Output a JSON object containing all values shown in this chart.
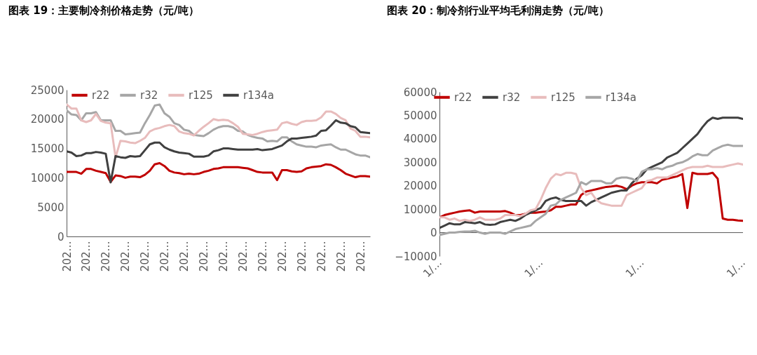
{
  "chart_data": [
    {
      "type": "line",
      "title": "图表 19：主要制冷剂价格走势（元/吨）",
      "categories": [
        "202…",
        null,
        null,
        null,
        "202…",
        null,
        null,
        null,
        "202…",
        null,
        null,
        null,
        "202…",
        null,
        null,
        null,
        "202…",
        null,
        null,
        null,
        "202…",
        null,
        null,
        null,
        "202…",
        null,
        null,
        null,
        "202…",
        null,
        null,
        null,
        "202…",
        null,
        null,
        null,
        "202…",
        null,
        null,
        null,
        "202…",
        null,
        null,
        null,
        "202…",
        null,
        null,
        null,
        "202…",
        null,
        null,
        null,
        "202…",
        null,
        null,
        null,
        "202…",
        null,
        null,
        null,
        "202…",
        null,
        null
      ],
      "series": [
        {
          "name": "r22",
          "color": "#c00000",
          "values": [
            11000,
            11000,
            11000,
            10700,
            11500,
            11500,
            11200,
            11000,
            10800,
            9300,
            10400,
            10300,
            10000,
            10200,
            10200,
            10100,
            10500,
            11200,
            12300,
            12500,
            12000,
            11200,
            10900,
            10800,
            10600,
            10700,
            10600,
            10700,
            11000,
            11200,
            11500,
            11600,
            11800,
            11800,
            11800,
            11800,
            11700,
            11600,
            11300,
            11000,
            10900,
            10900,
            10900,
            9600,
            11300,
            11300,
            11100,
            11000,
            11100,
            11600,
            11800,
            11900,
            12000,
            12300,
            12200,
            11800,
            11300,
            10700,
            10400,
            10100,
            10300,
            10300,
            10200
          ]
        },
        {
          "name": "r32",
          "color": "#a6a6a6",
          "values": [
            21500,
            20800,
            20700,
            19800,
            21000,
            21000,
            21200,
            19800,
            19800,
            19800,
            18000,
            18000,
            17400,
            17500,
            17600,
            17700,
            19300,
            20700,
            22300,
            22500,
            21000,
            20400,
            19300,
            19000,
            18200,
            18000,
            17300,
            17200,
            17100,
            17600,
            18200,
            18600,
            18800,
            18800,
            18600,
            18000,
            17900,
            17300,
            17000,
            16800,
            16700,
            16200,
            16300,
            16200,
            16900,
            16900,
            16200,
            15700,
            15500,
            15300,
            15300,
            15200,
            15500,
            15600,
            15700,
            15200,
            14800,
            14800,
            14400,
            14000,
            13800,
            13800,
            13500
          ]
        },
        {
          "name": "r125",
          "color": "#e8bcbc",
          "values": [
            22500,
            21800,
            21800,
            19800,
            19500,
            19800,
            20900,
            19700,
            19400,
            19300,
            13500,
            16300,
            16200,
            16000,
            15900,
            16300,
            16800,
            17900,
            18300,
            18500,
            18800,
            19000,
            18800,
            17900,
            17600,
            17500,
            17200,
            18000,
            18700,
            19300,
            20000,
            19800,
            19900,
            19800,
            19300,
            18700,
            17500,
            17400,
            17300,
            17500,
            17800,
            18000,
            18100,
            18200,
            19300,
            19500,
            19200,
            19000,
            19500,
            19700,
            19700,
            19800,
            20300,
            21300,
            21300,
            20900,
            20200,
            19800,
            18400,
            18000,
            17000,
            17000,
            16900
          ]
        },
        {
          "name": "r134a",
          "color": "#404040",
          "values": [
            14500,
            14300,
            13700,
            13800,
            14200,
            14200,
            14400,
            14300,
            14100,
            9200,
            13700,
            13500,
            13400,
            13700,
            13600,
            13700,
            14700,
            15700,
            16000,
            16000,
            15200,
            14800,
            14500,
            14300,
            14200,
            14100,
            13600,
            13600,
            13600,
            13800,
            14500,
            14700,
            15000,
            15000,
            14900,
            14800,
            14800,
            14800,
            14800,
            14900,
            14700,
            14800,
            14900,
            15200,
            15500,
            16200,
            16700,
            16700,
            16800,
            16900,
            17000,
            17200,
            18000,
            18100,
            18900,
            19800,
            19400,
            19300,
            18800,
            18600,
            17800,
            17700,
            17600
          ]
        }
      ],
      "ylim": [
        0,
        25000
      ],
      "yticks": [
        0,
        5000,
        10000,
        15000,
        20000,
        25000
      ],
      "legend": "top",
      "grid": false
    },
    {
      "type": "line",
      "title": "图表 20：制冷剂行业平均毛利润走势（元/吨）",
      "categories": [
        "1/…",
        null,
        null,
        null,
        null,
        null,
        null,
        null,
        null,
        null,
        null,
        null,
        null,
        null,
        null,
        null,
        null,
        null,
        null,
        null,
        "1/…",
        null,
        null,
        null,
        null,
        null,
        null,
        null,
        null,
        null,
        null,
        null,
        null,
        null,
        null,
        null,
        null,
        null,
        null,
        null,
        "1/…",
        null,
        null,
        null,
        null,
        null,
        null,
        null,
        null,
        null,
        null,
        null,
        null,
        null,
        null,
        null,
        null,
        null,
        null,
        null,
        "1/…"
      ],
      "series": [
        {
          "name": "r22",
          "color": "#c00000",
          "values": [
            6500,
            7500,
            8000,
            8500,
            9000,
            9300,
            9500,
            8500,
            9000,
            9000,
            9000,
            9000,
            9000,
            9200,
            8500,
            7500,
            7500,
            8000,
            8500,
            8500,
            8800,
            9000,
            9500,
            11000,
            11000,
            11500,
            12000,
            12000,
            16000,
            17500,
            18000,
            18500,
            19000,
            19500,
            19700,
            20000,
            19500,
            18500,
            20000,
            21000,
            21500,
            21500,
            21500,
            21000,
            22500,
            23000,
            23500,
            24000,
            25000,
            10500,
            25500,
            25000,
            25000,
            25000,
            25500,
            23000,
            6000,
            5500,
            5500,
            5200,
            5000
          ]
        },
        {
          "name": "r32",
          "color": "#404040",
          "values": [
            2000,
            3000,
            4000,
            3500,
            3500,
            4500,
            4300,
            4000,
            4500,
            3500,
            3300,
            3500,
            4500,
            5000,
            5500,
            5000,
            6000,
            7500,
            8500,
            9500,
            10500,
            13500,
            14500,
            15000,
            14000,
            13500,
            13500,
            13500,
            13500,
            11500,
            13000,
            14000,
            15000,
            16000,
            17000,
            17500,
            18000,
            18000,
            21000,
            23000,
            24500,
            27000,
            28000,
            29000,
            30000,
            32000,
            33000,
            34000,
            36000,
            38000,
            40000,
            42000,
            45000,
            47500,
            49000,
            48500,
            49000,
            49000,
            49000,
            49000,
            48500
          ]
        },
        {
          "name": "r125",
          "color": "#e8bcbc",
          "values": [
            6500,
            6500,
            5500,
            6000,
            5000,
            5500,
            5000,
            5500,
            6500,
            5500,
            5500,
            5500,
            6000,
            7500,
            7500,
            7500,
            7000,
            8000,
            9500,
            10000,
            14000,
            19000,
            23000,
            25000,
            24500,
            25500,
            25500,
            25000,
            19000,
            16000,
            17000,
            14000,
            12500,
            12000,
            11500,
            11500,
            11500,
            16000,
            17000,
            18000,
            19000,
            22000,
            22500,
            23500,
            23500,
            23500,
            24500,
            25500,
            26500,
            27500,
            28000,
            28000,
            28000,
            28500,
            28000,
            28000,
            28000,
            28500,
            29000,
            29500,
            29000
          ]
        },
        {
          "name": "r134a",
          "color": "#a6a6a6",
          "values": [
            -1000,
            -500,
            0,
            0,
            300,
            500,
            500,
            800,
            0,
            -500,
            0,
            0,
            0,
            -500,
            500,
            1500,
            2000,
            2500,
            3000,
            5000,
            6500,
            8000,
            11500,
            12000,
            14000,
            15000,
            16000,
            17000,
            21500,
            20500,
            22000,
            22000,
            22000,
            21000,
            21000,
            23000,
            23500,
            23500,
            23000,
            22000,
            26000,
            27000,
            27000,
            27500,
            27000,
            28000,
            28500,
            29500,
            30000,
            31000,
            32500,
            33500,
            33000,
            33000,
            35000,
            36000,
            37000,
            37500,
            37000,
            37000,
            37000
          ]
        }
      ],
      "ylim": [
        -10000,
        60000
      ],
      "yticks": [
        -10000,
        0,
        10000,
        20000,
        30000,
        40000,
        50000,
        60000
      ],
      "legend": "top",
      "grid": false
    }
  ]
}
